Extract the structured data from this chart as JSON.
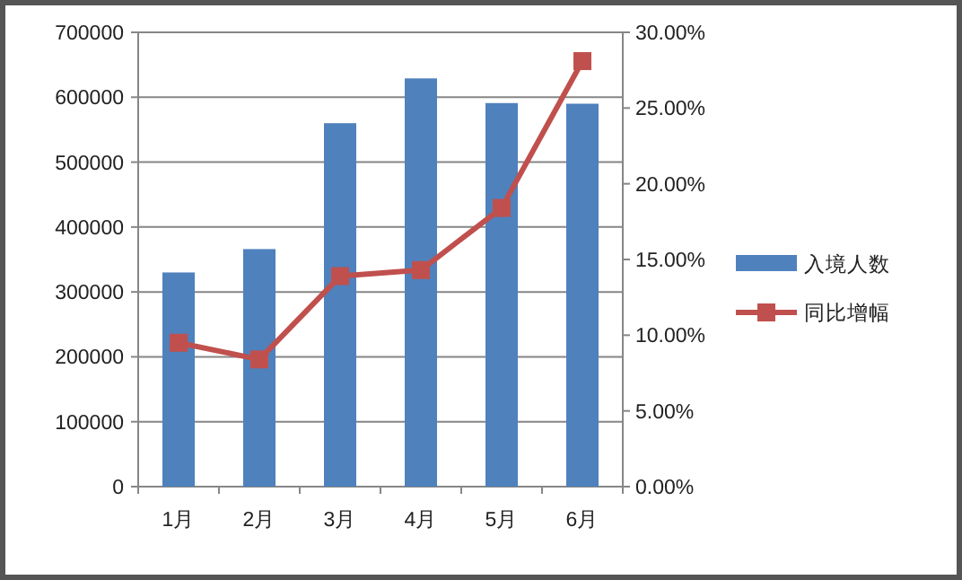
{
  "chart_data": {
    "type": "bar",
    "categories": [
      "1月",
      "2月",
      "3月",
      "4月",
      "5月",
      "6月"
    ],
    "series": [
      {
        "name": "入境人数",
        "color": "#4f81bd",
        "values": [
          330000,
          366000,
          560000,
          629000,
          591000,
          590000
        ]
      },
      {
        "name": "同比增幅",
        "type": "line",
        "axis": "y2",
        "color": "#c0504d",
        "marker": "square",
        "values": [
          9.5,
          8.4,
          13.9,
          14.3,
          18.4,
          28.1
        ]
      }
    ],
    "ylim": [
      0,
      700000
    ],
    "yticks": [
      0,
      100000,
      200000,
      300000,
      400000,
      500000,
      600000,
      700000
    ],
    "y2lim": [
      0,
      30
    ],
    "y2ticks": [
      {
        "value": 0,
        "label": "0.00%"
      },
      {
        "value": 5,
        "label": "5.00%"
      },
      {
        "value": 10,
        "label": "10.00%"
      },
      {
        "value": 15,
        "label": "15.00%"
      },
      {
        "value": 20,
        "label": "20.00%"
      },
      {
        "value": 25,
        "label": "25.00%"
      },
      {
        "value": 30,
        "label": "30.00%"
      }
    ],
    "grid": "y",
    "legend": "right"
  }
}
